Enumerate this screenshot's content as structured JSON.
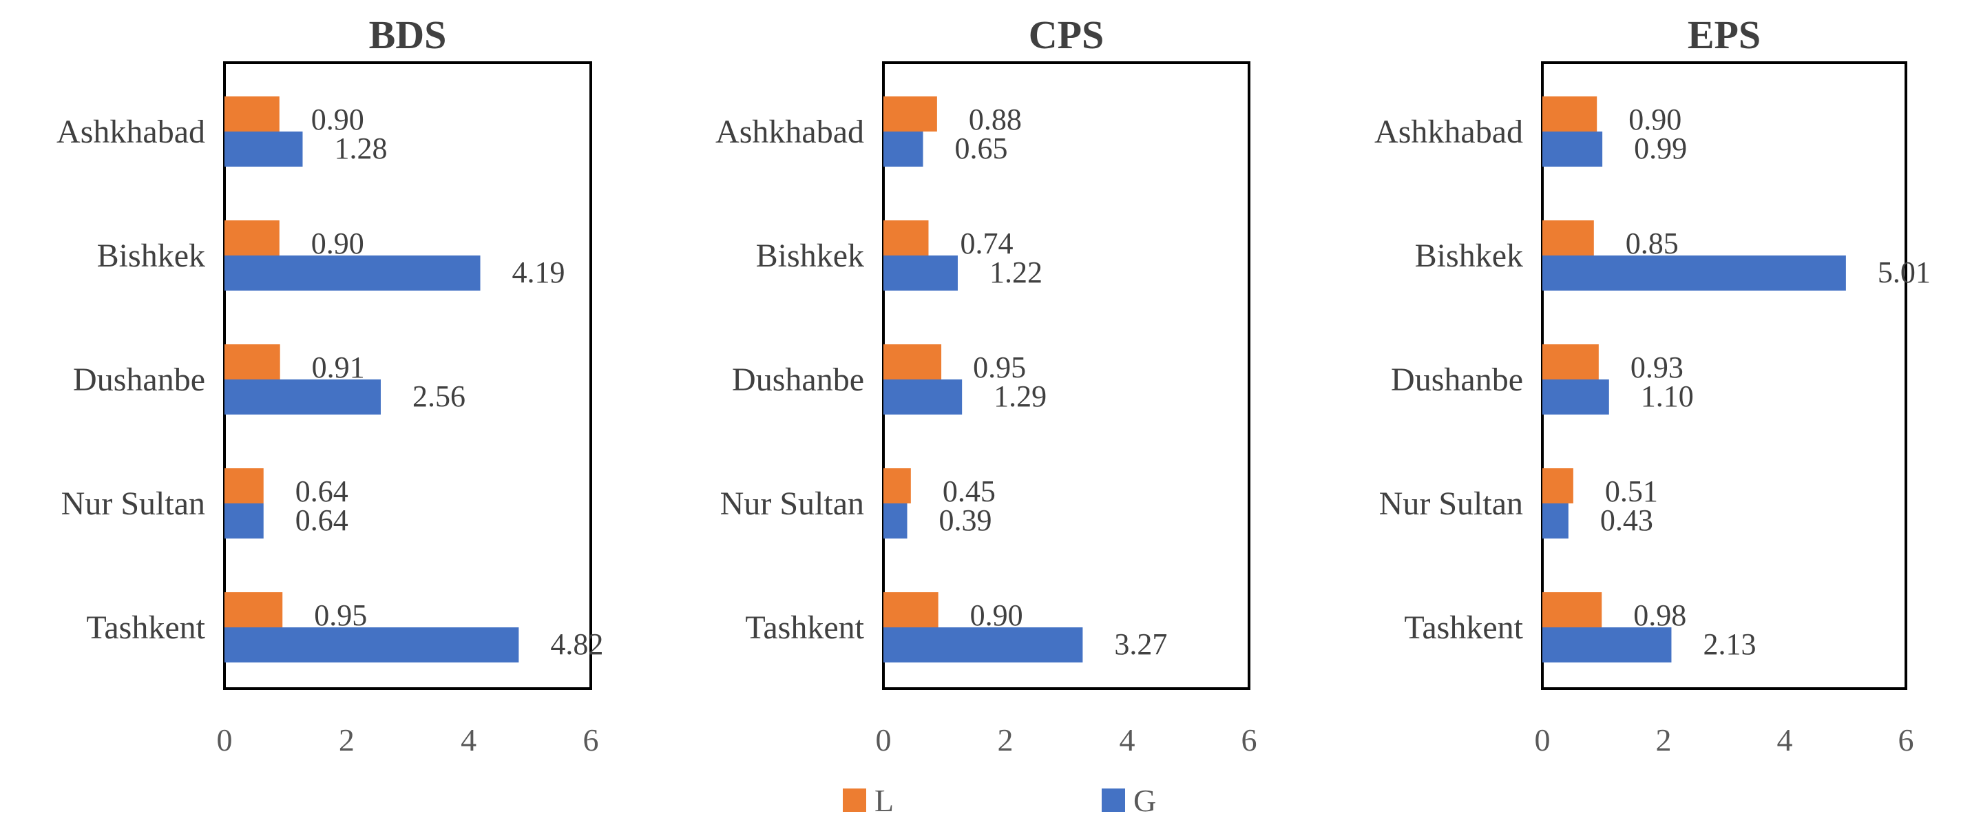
{
  "chart_data": [
    {
      "type": "bar",
      "orientation": "horizontal",
      "title": "BDS",
      "categories": [
        "Ashkhabad",
        "Bishkek",
        "Dushanbe",
        "Nur Sultan",
        "Tashkent"
      ],
      "series": [
        {
          "name": "L",
          "color": "#ed7d31",
          "values": [
            0.9,
            0.9,
            0.91,
            0.64,
            0.95
          ],
          "labels": [
            "0.90",
            "0.90",
            "0.91",
            "0.64",
            "0.95"
          ]
        },
        {
          "name": "G",
          "color": "#4472c4",
          "values": [
            1.28,
            4.19,
            2.56,
            0.64,
            4.82
          ],
          "labels": [
            "1.28",
            "4.19",
            "2.56",
            "0.64",
            "4.82"
          ]
        }
      ],
      "xlim": [
        0,
        6
      ],
      "xticks": [
        0,
        2,
        4,
        6
      ],
      "xtick_labels": [
        "0",
        "2",
        "4",
        "6"
      ],
      "grid": false
    },
    {
      "type": "bar",
      "orientation": "horizontal",
      "title": "CPS",
      "categories": [
        "Ashkhabad",
        "Bishkek",
        "Dushanbe",
        "Nur Sultan",
        "Tashkent"
      ],
      "series": [
        {
          "name": "L",
          "color": "#ed7d31",
          "values": [
            0.88,
            0.74,
            0.95,
            0.45,
            0.9
          ],
          "labels": [
            "0.88",
            "0.74",
            "0.95",
            "0.45",
            "0.90"
          ]
        },
        {
          "name": "G",
          "color": "#4472c4",
          "values": [
            0.65,
            1.22,
            1.29,
            0.39,
            3.27
          ],
          "labels": [
            "0.65",
            "1.22",
            "1.29",
            "0.39",
            "3.27"
          ]
        }
      ],
      "xlim": [
        0,
        6
      ],
      "xticks": [
        0,
        2,
        4,
        6
      ],
      "xtick_labels": [
        "0",
        "2",
        "4",
        "6"
      ],
      "grid": false
    },
    {
      "type": "bar",
      "orientation": "horizontal",
      "title": "EPS",
      "categories": [
        "Ashkhabad",
        "Bishkek",
        "Dushanbe",
        "Nur Sultan",
        "Tashkent"
      ],
      "series": [
        {
          "name": "L",
          "color": "#ed7d31",
          "values": [
            0.9,
            0.85,
            0.93,
            0.51,
            0.98
          ],
          "labels": [
            "0.90",
            "0.85",
            "0.93",
            "0.51",
            "0.98"
          ]
        },
        {
          "name": "G",
          "color": "#4472c4",
          "values": [
            0.99,
            5.01,
            1.1,
            0.43,
            2.13
          ],
          "labels": [
            "0.99",
            "5.01",
            "1.10",
            "0.43",
            "2.13"
          ]
        }
      ],
      "xlim": [
        0,
        6
      ],
      "xticks": [
        0,
        2,
        4,
        6
      ],
      "xtick_labels": [
        "0",
        "2",
        "4",
        "6"
      ],
      "grid": false
    }
  ],
  "legend": {
    "position": "bottom-center",
    "items": [
      {
        "label": "L",
        "color": "#ed7d31"
      },
      {
        "label": "G",
        "color": "#4472c4"
      }
    ]
  }
}
